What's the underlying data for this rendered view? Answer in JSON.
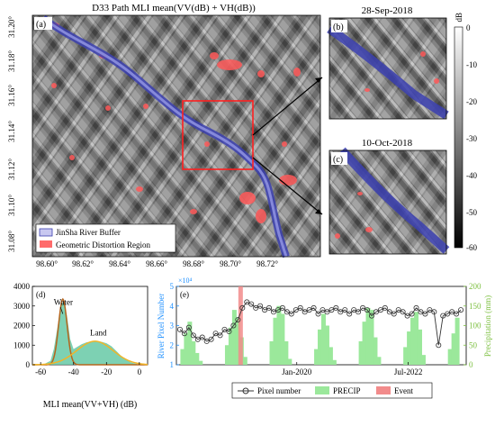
{
  "panels": {
    "a": {
      "label": "(a)",
      "title": "D33 Path MLI mean(VV(dB) + VH(dB))",
      "lat_ticks": [
        "31.20°",
        "31.18°",
        "31.16°",
        "31.14°",
        "31.12°",
        "31.10°",
        "31.08°"
      ],
      "lon_ticks": [
        "98.60°",
        "98.62°",
        "98.64°",
        "98.66°",
        "98.68°",
        "98.70°",
        "98.72°"
      ],
      "legend": [
        {
          "label": "JinSha River Buffer",
          "color": "#3b3fb0"
        },
        {
          "label": "Geometric Distortion Region",
          "color": "#ff4d4d"
        }
      ]
    },
    "b": {
      "label": "(b)",
      "date": "28-Sep-2018"
    },
    "c": {
      "label": "(c)",
      "date": "10-Oct-2018"
    },
    "colorbar": {
      "unit": "dB",
      "ticks": [
        "0",
        "-10",
        "-20",
        "-30",
        "-40",
        "-50",
        "-60"
      ]
    }
  },
  "chart_data": [
    {
      "type": "area",
      "panel": "(d)",
      "xlabel": "MLI mean(VV+VH) (dB)",
      "ylabel": "",
      "xlim": [
        -65,
        5
      ],
      "ylim": [
        0,
        4000
      ],
      "x_ticks": [
        "-60",
        "-40",
        "-20",
        "0"
      ],
      "y_ticks": [
        "0",
        "1000",
        "2000",
        "3000",
        "4000"
      ],
      "annotations": [
        "Water",
        "Land"
      ],
      "colors": {
        "histogram": "#66c9a6",
        "water_fit": "#b5651d",
        "land_fit": "#f0b429"
      },
      "x": [
        -62,
        -58,
        -54,
        -52,
        -50,
        -48,
        -46,
        -44,
        -42,
        -40,
        -38,
        -35,
        -32,
        -29,
        -26,
        -23,
        -20,
        -17,
        -14,
        -11,
        -8,
        -5,
        -2,
        0,
        2
      ],
      "values": [
        0,
        30,
        200,
        800,
        1800,
        2900,
        3300,
        2500,
        1300,
        800,
        900,
        1050,
        1150,
        1180,
        1200,
        1170,
        1100,
        950,
        700,
        450,
        250,
        120,
        50,
        20,
        0
      ]
    },
    {
      "type": "line",
      "panel": "(e)",
      "ylabel_left": "River Pixel Number",
      "ylabel_right": "Precipitation (mm)",
      "y_multiplier": "×10⁴",
      "ylim_left": [
        1,
        5
      ],
      "ylim_right": [
        0,
        200
      ],
      "left_ticks": [
        "1",
        "2",
        "3",
        "4",
        "5"
      ],
      "right_ticks": [
        "0",
        "50",
        "100",
        "150",
        "200"
      ],
      "xlim": [
        2017.3,
        2023.8
      ],
      "x_ticks": [
        {
          "x": 2020.0,
          "label": "Jan-2020"
        },
        {
          "x": 2022.5,
          "label": "Jul-2022"
        }
      ],
      "event_x": 2018.74,
      "legend": [
        "Pixel number",
        "PRECIP",
        "Event"
      ],
      "colors": {
        "pixel": "#333333",
        "precip": "#9be89b",
        "event": "#f28b8b",
        "left_axis": "#1e90ff",
        "right_axis": "#7cbf3f"
      },
      "series": [
        {
          "name": "Pixel number",
          "x": [
            2017.38,
            2017.48,
            2017.58,
            2017.68,
            2017.78,
            2017.88,
            2017.98,
            2018.08,
            2018.18,
            2018.28,
            2018.38,
            2018.48,
            2018.58,
            2018.68,
            2018.78,
            2018.88,
            2018.98,
            2019.08,
            2019.18,
            2019.28,
            2019.38,
            2019.48,
            2019.58,
            2019.68,
            2019.78,
            2019.88,
            2019.98,
            2020.08,
            2020.18,
            2020.28,
            2020.38,
            2020.48,
            2020.58,
            2020.68,
            2020.78,
            2020.88,
            2020.98,
            2021.08,
            2021.18,
            2021.28,
            2021.38,
            2021.48,
            2021.58,
            2021.68,
            2021.78,
            2021.88,
            2021.98,
            2022.08,
            2022.18,
            2022.28,
            2022.38,
            2022.48,
            2022.58,
            2022.68,
            2022.78,
            2022.88,
            2022.98,
            2023.08,
            2023.18,
            2023.28,
            2023.38,
            2023.48,
            2023.58,
            2023.68
          ],
          "values": [
            2.8,
            2.6,
            2.9,
            2.5,
            2.3,
            2.4,
            2.2,
            2.3,
            2.6,
            2.5,
            2.8,
            2.7,
            3.0,
            3.3,
            3.9,
            4.2,
            4.1,
            3.9,
            4.0,
            3.8,
            3.9,
            3.7,
            3.8,
            3.9,
            3.7,
            3.6,
            3.8,
            3.9,
            3.7,
            3.8,
            3.9,
            3.6,
            3.8,
            3.7,
            3.8,
            3.9,
            3.7,
            3.8,
            3.6,
            3.8,
            3.7,
            3.9,
            3.8,
            3.5,
            3.7,
            3.8,
            3.9,
            3.7,
            3.6,
            3.8,
            3.7,
            3.5,
            3.6,
            3.9,
            3.7,
            3.6,
            3.8,
            3.7,
            2.0,
            3.5,
            3.6,
            3.7,
            3.6,
            3.8
          ]
        },
        {
          "name": "PRECIP",
          "x": [
            2017.44,
            2017.52,
            2017.6,
            2017.68,
            2017.76,
            2017.84,
            2018.44,
            2018.52,
            2018.6,
            2018.68,
            2018.76,
            2018.84,
            2019.44,
            2019.52,
            2019.6,
            2019.68,
            2019.76,
            2019.84,
            2020.44,
            2020.52,
            2020.6,
            2020.68,
            2020.76,
            2020.84,
            2021.44,
            2021.52,
            2021.6,
            2021.68,
            2021.76,
            2021.84,
            2022.44,
            2022.52,
            2022.6,
            2022.68,
            2022.76,
            2022.84,
            2023.44,
            2023.52,
            2023.6
          ],
          "values": [
            40,
            80,
            110,
            60,
            30,
            10,
            50,
            95,
            140,
            120,
            70,
            20,
            60,
            120,
            150,
            130,
            60,
            15,
            40,
            90,
            130,
            100,
            45,
            12,
            60,
            110,
            145,
            140,
            70,
            20,
            45,
            85,
            120,
            135,
            90,
            25,
            40,
            80,
            120
          ]
        }
      ]
    }
  ]
}
